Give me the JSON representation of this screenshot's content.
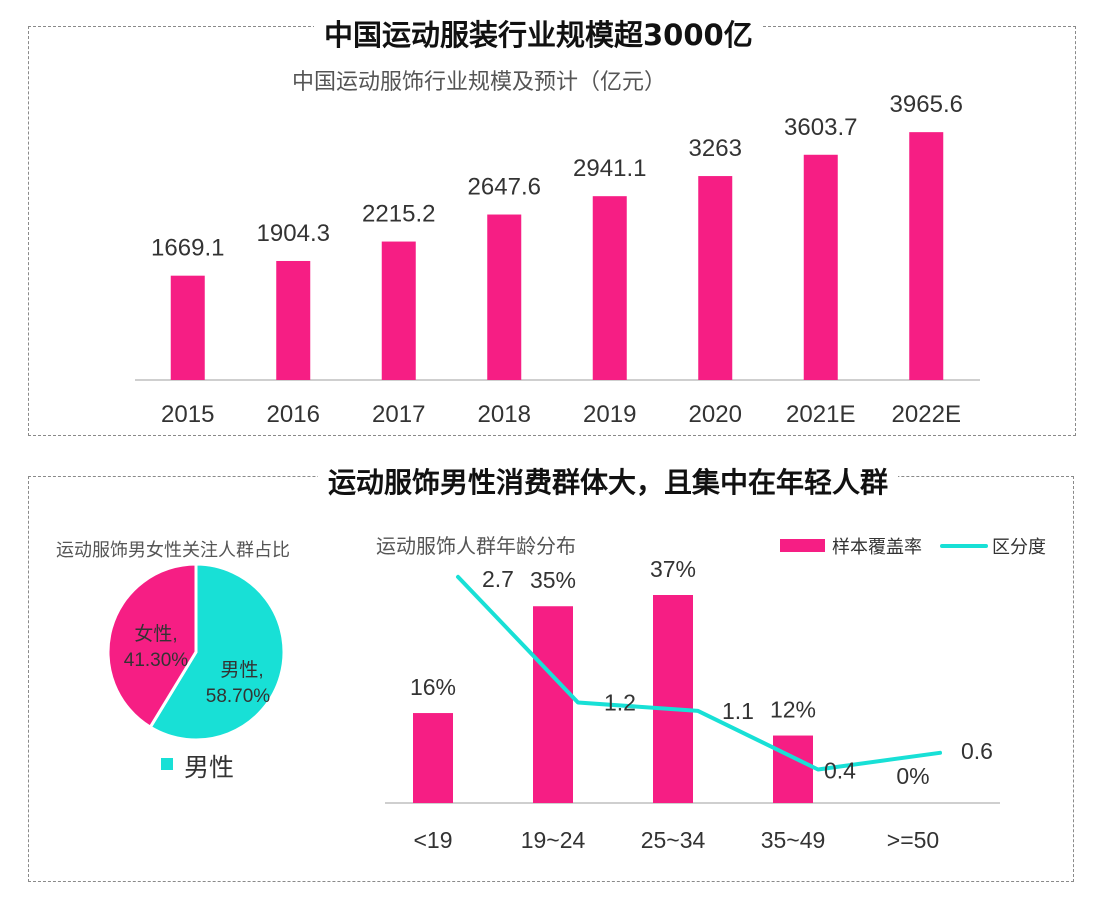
{
  "top_panel": {
    "title": "中国运动服装行业规模超3000亿",
    "subtitle": "中国运动服饰行业规模及预计（亿元）"
  },
  "bottom_panel": {
    "title": "运动服饰男性消费群体大，且集中在年轻人群",
    "pie_title": "运动服饰男女性关注人群占比",
    "age_title": "运动服饰人群年龄分布"
  },
  "colors": {
    "pink": "#f61e84",
    "teal": "#18e0d6",
    "axis": "#bfbfbf"
  },
  "chart_data": [
    {
      "type": "bar",
      "categories": [
        "2015",
        "2016",
        "2017",
        "2018",
        "2019",
        "2020",
        "2021E",
        "2022E"
      ],
      "values": [
        1669.1,
        1904.3,
        2215.2,
        2647.6,
        2941.1,
        3263,
        3603.7,
        3965.6
      ],
      "value_labels": [
        "1669.1",
        "1904.3",
        "2215.2",
        "2647.6",
        "2941.1",
        "3263",
        "3603.7",
        "3965.6"
      ],
      "ylim": [
        0,
        4000
      ]
    },
    {
      "type": "pie",
      "slices": [
        {
          "name": "男性",
          "value": 58.7,
          "label": "58.70%",
          "color": "#18e0d6"
        },
        {
          "name": "女性",
          "value": 41.3,
          "label": "41.30%",
          "color": "#f61e84"
        }
      ],
      "legend": {
        "entries": [
          "男性"
        ],
        "position": "bottom"
      }
    },
    {
      "type": "bar",
      "categories": [
        "<19",
        "19~24",
        "25~34",
        "35~49",
        ">=50"
      ],
      "legend": {
        "position": "top-right"
      },
      "series": [
        {
          "name": "样本覆盖率",
          "type": "bar",
          "values": [
            16,
            35,
            37,
            12,
            0
          ],
          "labels": [
            "16%",
            "35%",
            "37%",
            "12%",
            "0%"
          ],
          "color": "#f61e84",
          "ylim": [
            0,
            45
          ]
        },
        {
          "name": "区分度",
          "type": "line",
          "values": [
            2.7,
            1.2,
            1.1,
            0.4,
            0.6
          ],
          "labels": [
            "2.7",
            "1.2",
            "1.1",
            "0.4",
            "0.6"
          ],
          "color": "#18e0d6",
          "ylim": [
            0,
            3.2
          ]
        }
      ]
    }
  ]
}
